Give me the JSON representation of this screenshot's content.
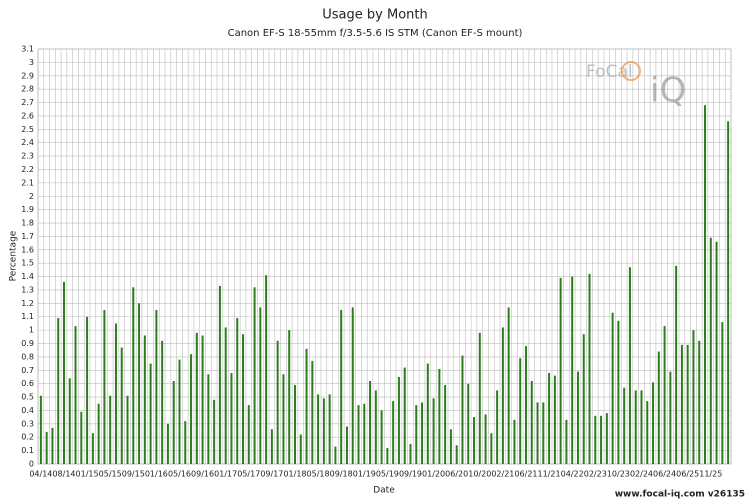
{
  "chart_data": {
    "type": "bar",
    "title": "Usage by Month",
    "subtitle": "Canon EF-S 18-55mm f/3.5-5.6 IS STM (Canon EF-S mount)",
    "x_label": "Date",
    "y_label": "Percentage",
    "footer": "www.focal-iq.com  v26135",
    "watermark": [
      "FoCal",
      "iQ"
    ],
    "color": "#2d7d1f",
    "grid": true,
    "categories": [
      "04/14",
      null,
      null,
      null,
      "08/14",
      null,
      null,
      null,
      "01/15",
      null,
      null,
      null,
      "05/15",
      null,
      null,
      null,
      "09/15",
      null,
      null,
      null,
      "01/16",
      null,
      null,
      null,
      "05/16",
      null,
      null,
      null,
      "09/16",
      null,
      null,
      null,
      "01/17",
      null,
      null,
      null,
      "05/17",
      null,
      null,
      null,
      "09/17",
      null,
      null,
      null,
      "01/18",
      null,
      null,
      null,
      "05/18",
      null,
      null,
      null,
      "09/18",
      null,
      null,
      null,
      "01/19",
      null,
      null,
      null,
      "05/19",
      null,
      null,
      null,
      "09/19",
      null,
      null,
      null,
      "01/20",
      null,
      null,
      null,
      "06/20",
      null,
      null,
      null,
      "10/20",
      null,
      null,
      null,
      "02/21",
      null,
      null,
      null,
      "06/21",
      null,
      null,
      null,
      "11/21",
      null,
      null,
      null,
      "04/22",
      null,
      null,
      null,
      "02/23",
      null,
      null,
      null,
      "10/23",
      null,
      null,
      null,
      "02/24",
      null,
      null,
      null,
      "06/24",
      null,
      null,
      null,
      "06/25",
      null,
      null,
      null,
      "11/25",
      null,
      null,
      null
    ],
    "values": [
      0.51,
      0.24,
      0.27,
      1.09,
      1.36,
      0.64,
      1.03,
      0.39,
      1.1,
      0.23,
      0.45,
      1.15,
      0.51,
      1.05,
      0.87,
      0.51,
      1.32,
      1.2,
      0.96,
      0.75,
      1.15,
      0.92,
      0.3,
      0.62,
      0.78,
      0.32,
      0.82,
      0.98,
      0.96,
      0.67,
      0.48,
      1.33,
      1.02,
      0.68,
      1.09,
      0.97,
      0.44,
      1.32,
      1.17,
      1.41,
      0.26,
      0.92,
      0.67,
      1.0,
      0.59,
      0.22,
      0.86,
      0.77,
      0.52,
      0.49,
      0.52,
      0.13,
      1.15,
      0.28,
      1.17,
      0.44,
      0.45,
      0.62,
      0.55,
      0.4,
      0.12,
      0.47,
      0.65,
      0.72,
      0.15,
      0.44,
      0.46,
      0.75,
      0.49,
      0.71,
      0.59,
      0.26,
      0.14,
      0.81,
      0.6,
      0.35,
      0.98,
      0.37,
      0.23,
      0.55,
      1.02,
      1.17,
      0.33,
      0.79,
      0.88,
      0.62,
      0.46,
      0.46,
      0.68,
      0.66,
      1.39,
      0.33,
      1.4,
      0.69,
      0.97,
      1.42,
      0.36,
      0.36,
      0.38,
      1.13,
      1.07,
      0.57,
      1.47,
      0.55,
      0.55,
      0.47,
      0.61,
      0.84,
      1.03,
      0.69,
      1.48,
      0.89,
      0.89,
      1.0,
      0.92,
      2.68,
      1.69,
      1.66,
      1.06,
      2.56
    ],
    "ylim": [
      0,
      3.1
    ],
    "yticks": [
      0,
      0.1,
      0.2,
      0.3,
      0.4,
      0.5,
      0.6,
      0.7,
      0.8,
      0.9,
      1,
      1.1,
      1.2,
      1.3,
      1.4,
      1.5,
      1.6,
      1.7,
      1.8,
      1.9,
      2,
      2.1,
      2.2,
      2.3,
      2.4,
      2.5,
      2.6,
      2.7,
      2.8,
      2.9,
      3,
      3.1
    ]
  }
}
